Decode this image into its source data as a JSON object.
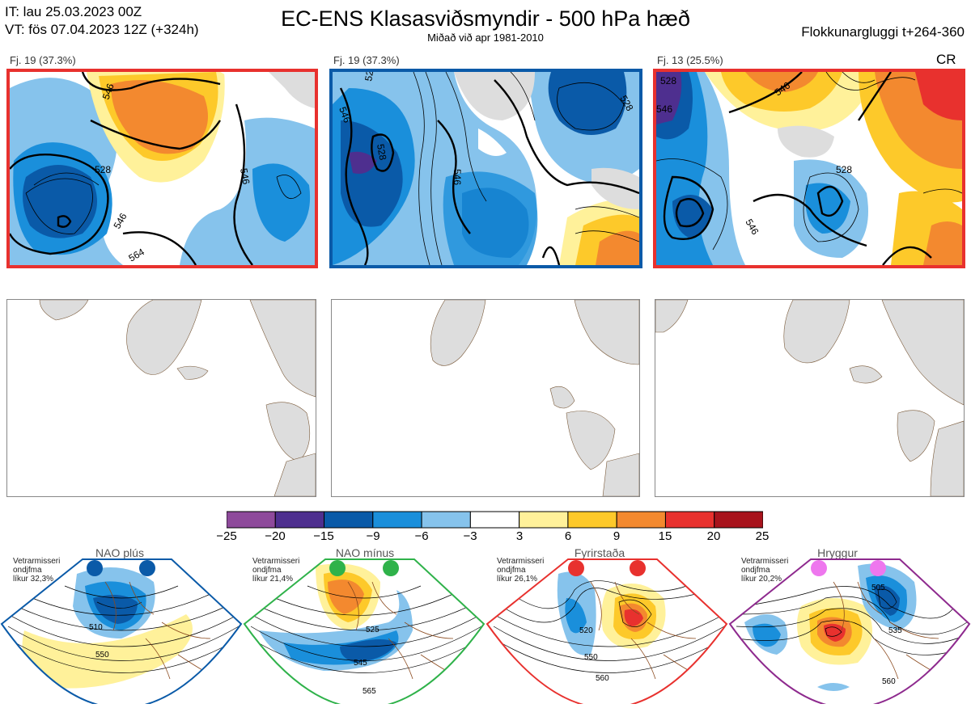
{
  "header": {
    "it_line": "IT: lau 25.03.2023 00Z",
    "vt_line": "VT: fös 07.04.2023 12Z  (+324h)",
    "title": "EC-ENS Klasasviðsmyndir - 500 hPa hæð",
    "subtitle": "Miðað við apr 1981-2010",
    "window": "Flokkunargluggi t+264-360"
  },
  "panels": [
    {
      "label": "Fj. 19 (37.3%)",
      "border_color": "#e8312e",
      "c1": "546",
      "c2": "528",
      "c3": "546",
      "c4": "546",
      "c5": "564"
    },
    {
      "label": "Fj. 19 (37.3%)",
      "border_color": "#0a5aa8",
      "c1": "528",
      "c2": "546",
      "c3": "528",
      "c4": "546",
      "c5": "528"
    },
    {
      "label": "Fj. 13 (25.5%)",
      "border_color": "#e8312e",
      "extra": "CR",
      "c1": "528",
      "c2": "546",
      "c3": "546",
      "c4": "546",
      "c5": "528"
    }
  ],
  "colorbar": {
    "colors": [
      "#8e4a9b",
      "#4e2f8f",
      "#0a5aa8",
      "#1a8fdb",
      "#86c3ec",
      "#ffffff",
      "#fff19a",
      "#fdc92a",
      "#f3892f",
      "#e8312e",
      "#a8131c"
    ],
    "ticks": [
      "−25",
      "−20",
      "−15",
      "−9",
      "−6",
      "−3",
      "3",
      "6",
      "9",
      "15",
      "20",
      "25"
    ]
  },
  "regimes": [
    {
      "name": "NAO plús",
      "dot_color": "#0a5aa8",
      "frame_color": "#0a5aa8",
      "info": [
        "Vetrarmisseri",
        "ondjfma",
        "líkur 32,3%"
      ],
      "labels": [
        "510",
        "550"
      ]
    },
    {
      "name": "NAO mínus",
      "dot_color": "#2fb24a",
      "frame_color": "#2fb24a",
      "info": [
        "Vetrarmisseri",
        "ondjfma",
        "líkur 21,4%"
      ],
      "labels": [
        "525",
        "545",
        "565"
      ]
    },
    {
      "name": "Fyrirstaða",
      "dot_color": "#e8312e",
      "frame_color": "#e8312e",
      "info": [
        "Vetrarmisseri",
        "ondjfma",
        "líkur 26,1%"
      ],
      "labels": [
        "520",
        "550",
        "560"
      ]
    },
    {
      "name": "Hryggur",
      "dot_color": "#ee77ee",
      "frame_color": "#8e2a8e",
      "info": [
        "Vetrarmisseri",
        "ondjfma",
        "líkur 20,2%"
      ],
      "labels": [
        "505",
        "535",
        "560"
      ]
    }
  ]
}
